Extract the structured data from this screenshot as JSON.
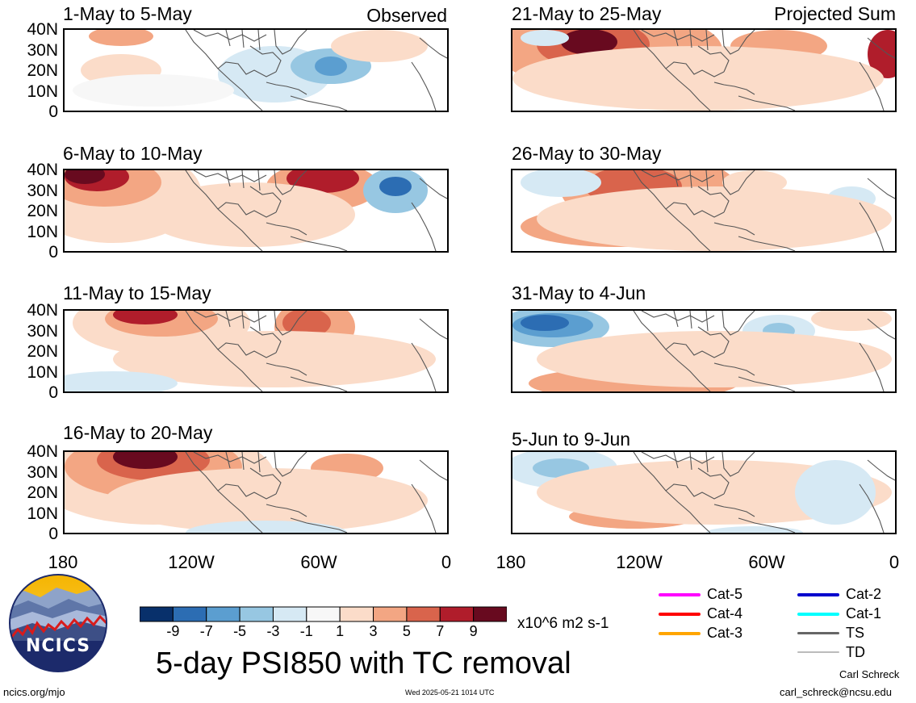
{
  "panels_left": [
    {
      "title": "1-May to 5-May",
      "label": "Observed"
    },
    {
      "title": "6-May to 10-May",
      "label": ""
    },
    {
      "title": "11-May to 15-May",
      "label": ""
    },
    {
      "title": "16-May to 20-May",
      "label": ""
    }
  ],
  "panels_right": [
    {
      "title": "21-May to 25-May",
      "label": "Projected Sum"
    },
    {
      "title": "26-May to 30-May",
      "label": ""
    },
    {
      "title": "31-May to 4-Jun",
      "label": ""
    },
    {
      "title": "5-Jun to 9-Jun",
      "label": ""
    }
  ],
  "y_ticks": [
    "40N",
    "30N",
    "20N",
    "10N",
    "0"
  ],
  "x_ticks": [
    "180",
    "120W",
    "60W",
    "0"
  ],
  "colorbar": {
    "colors": [
      "#08306b",
      "#2c6db3",
      "#5b9ed0",
      "#97c7e2",
      "#d6e9f4",
      "#f7f7f7",
      "#fbdcc9",
      "#f3a683",
      "#d9644c",
      "#b01d2b",
      "#680a1f"
    ],
    "labels": [
      "-9",
      "-7",
      "-5",
      "-3",
      "-1",
      "1",
      "3",
      "5",
      "7",
      "9"
    ],
    "units": "x10^6 m2 s-1"
  },
  "legend": [
    {
      "label": "Cat-5",
      "color": "#ff00ff"
    },
    {
      "label": "Cat-4",
      "color": "#ff0000"
    },
    {
      "label": "Cat-3",
      "color": "#ffa500"
    },
    {
      "label": "Cat-2",
      "color": "#0000cd"
    },
    {
      "label": "Cat-1",
      "color": "#00ffff"
    },
    {
      "label": "TS",
      "color": "#666666"
    },
    {
      "label": "TD",
      "color": "#bbbbbb"
    }
  ],
  "main_title": "5-day PSI850 with TC removal",
  "logo_text": "NCICS",
  "footer": {
    "url": "ncics.org/mjo",
    "timestamp": "Wed 2025-05-21 1014 UTC",
    "author": "Carl Schreck",
    "email": "carl_schreck@ncsu.edu"
  }
}
